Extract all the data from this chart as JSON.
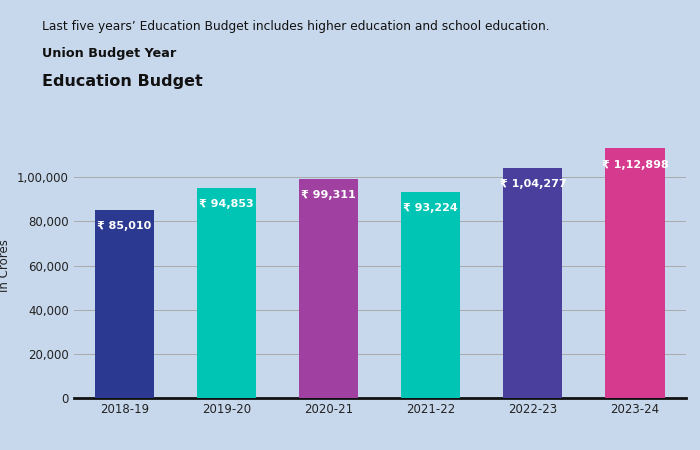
{
  "categories": [
    "2018-19",
    "2019-20",
    "2020-21",
    "2021-22",
    "2022-23",
    "2023-24"
  ],
  "values": [
    85010,
    94853,
    99311,
    93224,
    104277,
    112898
  ],
  "bar_colors": [
    "#2B3990",
    "#00C4B4",
    "#A040A0",
    "#00C4B4",
    "#4B3F9E",
    "#D63A8E"
  ],
  "labels": [
    "₹ 85,010",
    "₹ 94,853",
    "₹ 99,311",
    "₹ 93,224",
    "₹ 1,04,277",
    "₹ 1,12,898"
  ],
  "title": "Education Budget",
  "subtitle": "Union Budget Year",
  "suptitle": "Last five years’ Education Budget includes higher education and school education.",
  "ylabel": "In Crores",
  "ylim": [
    0,
    120000
  ],
  "yticks": [
    0,
    20000,
    40000,
    60000,
    80000,
    100000
  ],
  "ytick_labels": [
    "0",
    "20,000",
    "40,000",
    "60,000",
    "80,000",
    "1,00,000"
  ],
  "background_color": "#C8D8EC",
  "grid_color": "#aaaaaa",
  "bar_label_color": "#ffffff"
}
